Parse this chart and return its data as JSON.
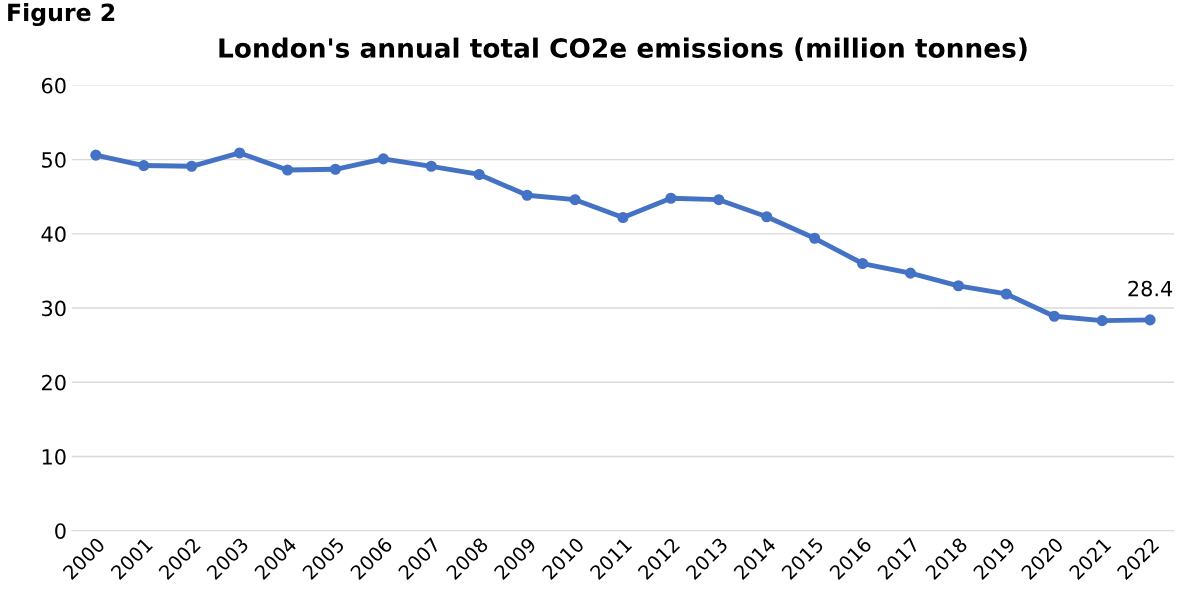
{
  "chart_data": {
    "type": "line",
    "title": "London's annual total CO2e emissions (million tonnes)",
    "annotations": [
      "Figure 2"
    ],
    "categories": [
      "2000",
      "2001",
      "2002",
      "2003",
      "2004",
      "2005",
      "2006",
      "2007",
      "2008",
      "2009",
      "2010",
      "2011",
      "2012",
      "2013",
      "2014",
      "2015",
      "2016",
      "2017",
      "2018",
      "2019",
      "2020",
      "2021",
      "2022"
    ],
    "series": [
      {
        "color": "#4472c4",
        "values": [
          50.6,
          49.2,
          49.1,
          50.9,
          48.6,
          48.7,
          50.1,
          49.1,
          48.0,
          45.2,
          44.6,
          42.2,
          44.8,
          44.6,
          42.3,
          39.4,
          36.0,
          34.7,
          33.0,
          31.9,
          28.9,
          28.3,
          28.4
        ],
        "value_labels": [
          null,
          null,
          null,
          null,
          null,
          null,
          null,
          null,
          null,
          null,
          null,
          null,
          null,
          null,
          null,
          null,
          null,
          null,
          null,
          null,
          null,
          null,
          "28.4"
        ]
      }
    ],
    "ylim": [
      0,
      60
    ],
    "yticks": [
      0,
      10,
      20,
      30,
      40,
      50,
      60
    ],
    "grid": "y",
    "legend": false,
    "marker": "circle",
    "line_style": "solid"
  }
}
